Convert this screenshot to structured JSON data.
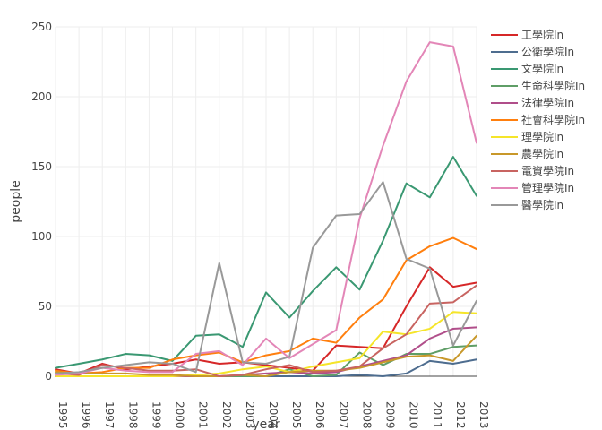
{
  "chart_data": {
    "type": "line",
    "xlabel": "year",
    "ylabel": "people",
    "xlim": [
      1995,
      2013
    ],
    "ylim": [
      0,
      250
    ],
    "yticks": [
      0,
      50,
      100,
      150,
      200,
      250
    ],
    "x": [
      1995,
      1996,
      1997,
      1998,
      1999,
      2000,
      2001,
      2002,
      2003,
      2004,
      2005,
      2006,
      2007,
      2008,
      2009,
      2010,
      2011,
      2012,
      2013
    ],
    "legend_position": "right",
    "series": [
      {
        "name": "工學院In",
        "color": "#d62728",
        "values": [
          5,
          2,
          9,
          5,
          7,
          9,
          12,
          9,
          10,
          8,
          6,
          4,
          22,
          21,
          20,
          50,
          78,
          64,
          67
        ]
      },
      {
        "name": "公衛學院In",
        "color": "#4e6d8f",
        "values": [
          0,
          0,
          0,
          0,
          0,
          0,
          0,
          0,
          0,
          0,
          0,
          0,
          0,
          1,
          0,
          2,
          11,
          9,
          12
        ]
      },
      {
        "name": "文學院In",
        "color": "#3a9872",
        "values": [
          6,
          9,
          12,
          16,
          15,
          11,
          29,
          30,
          21,
          60,
          42,
          61,
          78,
          62,
          97,
          138,
          128,
          157,
          129
        ]
      },
      {
        "name": "生命科學院In",
        "color": "#5f9e67",
        "values": [
          0,
          0,
          0,
          0,
          0,
          0,
          0,
          0,
          0,
          0,
          5,
          0,
          1,
          17,
          8,
          16,
          16,
          21,
          22
        ]
      },
      {
        "name": "法律學院In",
        "color": "#b04e8a",
        "values": [
          0,
          0,
          0,
          0,
          0,
          0,
          0,
          0,
          1,
          2,
          3,
          2,
          3,
          7,
          11,
          15,
          27,
          34,
          35
        ]
      },
      {
        "name": "社會科學院In",
        "color": "#ff7f0e",
        "values": [
          4,
          2,
          3,
          6,
          6,
          12,
          15,
          17,
          10,
          15,
          18,
          27,
          24,
          42,
          55,
          83,
          93,
          99,
          91
        ]
      },
      {
        "name": "理學院In",
        "color": "#f5e52a",
        "values": [
          0,
          0,
          0,
          0,
          0,
          0,
          1,
          2,
          5,
          7,
          3,
          7,
          10,
          13,
          32,
          30,
          34,
          46,
          45
        ]
      },
      {
        "name": "農學院In",
        "color": "#c8982a",
        "values": [
          3,
          2,
          2,
          2,
          1,
          1,
          0,
          0,
          1,
          0,
          3,
          4,
          4,
          6,
          10,
          14,
          15,
          11,
          29
        ]
      },
      {
        "name": "電資學院In",
        "color": "#c86461",
        "values": [
          2,
          1,
          8,
          6,
          4,
          4,
          5,
          0,
          1,
          5,
          8,
          3,
          4,
          7,
          20,
          30,
          52,
          53,
          65
        ]
      },
      {
        "name": "管理學院In",
        "color": "#e386b7",
        "values": [
          1,
          2,
          6,
          4,
          3,
          3,
          16,
          18,
          8,
          27,
          13,
          23,
          33,
          113,
          165,
          211,
          239,
          236,
          167
        ]
      },
      {
        "name": "醫學院In",
        "color": "#999999",
        "values": [
          2,
          3,
          6,
          8,
          10,
          9,
          3,
          81,
          10,
          9,
          14,
          92,
          115,
          116,
          139,
          84,
          77,
          22,
          54
        ]
      }
    ]
  }
}
